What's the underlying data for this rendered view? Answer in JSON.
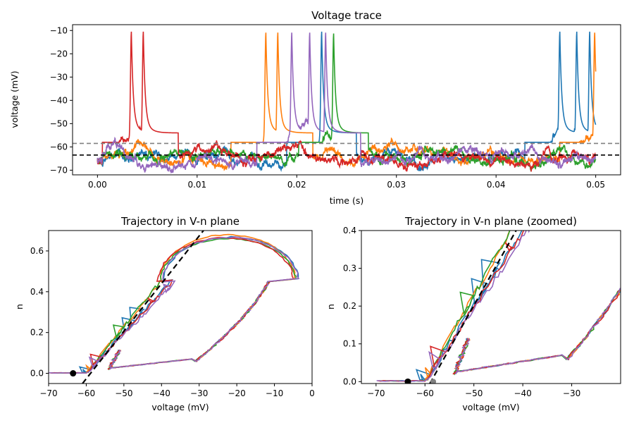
{
  "figure": {
    "background": "#ffffff"
  },
  "chart_data": [
    {
      "type": "line",
      "title": "Voltage trace",
      "xlabel": "time (s)",
      "ylabel": "voltage (mV)",
      "xlim": [
        -0.0025,
        0.0525
      ],
      "ylim": [
        -72,
        -7.5
      ],
      "xticks": [
        0.0,
        0.01,
        0.02,
        0.03,
        0.04,
        0.05
      ],
      "xtick_labels": [
        "0.00",
        "0.01",
        "0.02",
        "0.03",
        "0.04",
        "0.05"
      ],
      "yticks": [
        -70,
        -60,
        -50,
        -40,
        -30,
        -20,
        -10
      ],
      "ytick_labels": [
        "−70",
        "−60",
        "−50",
        "−40",
        "−30",
        "−20",
        "−10"
      ],
      "hlines": [
        {
          "y": -58.5,
          "color": "#808080",
          "style": "dashed"
        },
        {
          "y": -63.5,
          "color": "#000000",
          "style": "dashed"
        }
      ],
      "series": [
        {
          "color": "#1f77b4",
          "spike_times": [
            0.0225,
            0.0464,
            0.0481,
            0.0494
          ]
        },
        {
          "color": "#ff7f0e",
          "spike_times": [
            0.0169,
            0.0181,
            0.0499
          ]
        },
        {
          "color": "#2ca02c",
          "spike_times": [
            0.0237
          ]
        },
        {
          "color": "#d62728",
          "spike_times": [
            0.0034,
            0.0046
          ]
        },
        {
          "color": "#9467bd",
          "spike_times": [
            0.0195,
            0.0213,
            0.0229
          ]
        }
      ]
    },
    {
      "type": "line",
      "title": "Trajectory in V-n plane",
      "xlabel": "voltage (mV)",
      "ylabel": "n",
      "xlim": [
        -70,
        0
      ],
      "ylim": [
        -0.05,
        0.7
      ],
      "xticks": [
        -70,
        -60,
        -50,
        -40,
        -30,
        -20,
        -10,
        0
      ],
      "xtick_labels": [
        "−70",
        "−60",
        "−50",
        "−40",
        "−30",
        "−20",
        "−10",
        "0"
      ],
      "yticks": [
        0.0,
        0.2,
        0.4,
        0.6
      ],
      "ytick_labels": [
        "0.0",
        "0.2",
        "0.4",
        "0.6"
      ],
      "threshold_line": {
        "points": [
          [
            -61,
            -0.05
          ],
          [
            -28,
            0.72
          ]
        ],
        "color": "#000000",
        "style": "dashed"
      },
      "fixed_point": {
        "v": -63.5,
        "n": 0.0,
        "color": "#000000"
      }
    },
    {
      "type": "line",
      "title": "Trajectory in V-n plane (zoomed)",
      "xlabel": "voltage (mV)",
      "ylabel": "n",
      "xlim": [
        -73,
        -20
      ],
      "ylim": [
        -0.005,
        0.4
      ],
      "xticks": [
        -70,
        -60,
        -50,
        -40,
        -30
      ],
      "xtick_labels": [
        "−70",
        "−60",
        "−50",
        "−40",
        "−30"
      ],
      "yticks": [
        0.0,
        0.1,
        0.2,
        0.3,
        0.4
      ],
      "ytick_labels": [
        "0.0",
        "0.1",
        "0.2",
        "0.3",
        "0.4"
      ],
      "threshold_line": {
        "points": [
          [
            -59,
            -0.005
          ],
          [
            -40.5,
            0.42
          ]
        ],
        "color": "#000000",
        "style": "dashed"
      },
      "fixed_point": {
        "v": -63.5,
        "n": 0.0,
        "color": "#000000"
      },
      "gray_point": {
        "v": -58.3,
        "n": 0.0,
        "color": "#808080"
      }
    }
  ]
}
